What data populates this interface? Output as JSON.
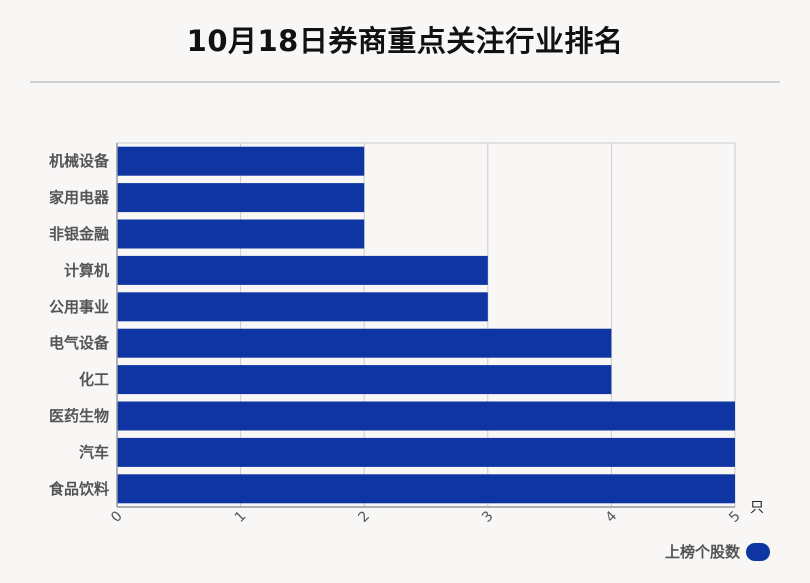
{
  "title": "10月18日券商重点关注行业排名",
  "chart_data": {
    "type": "bar",
    "orientation": "horizontal",
    "categories": [
      "机械设备",
      "家用电器",
      "非银金融",
      "计算机",
      "公用事业",
      "电气设备",
      "化工",
      "医药生物",
      "汽车",
      "食品饮料"
    ],
    "series": [
      {
        "name": "上榜个股数",
        "values": [
          2,
          2,
          2,
          3,
          3,
          4,
          4,
          5,
          5,
          5
        ]
      }
    ],
    "xlim": [
      0,
      5
    ],
    "x_ticks": [
      "0",
      "1",
      "2",
      "3",
      "4",
      "5"
    ],
    "x_unit": "只",
    "grid": "vertical",
    "legend_position": "bottom-right"
  },
  "colors": {
    "bar": "#0f35a2",
    "grid": "#cccccc",
    "axis": "#999999"
  }
}
